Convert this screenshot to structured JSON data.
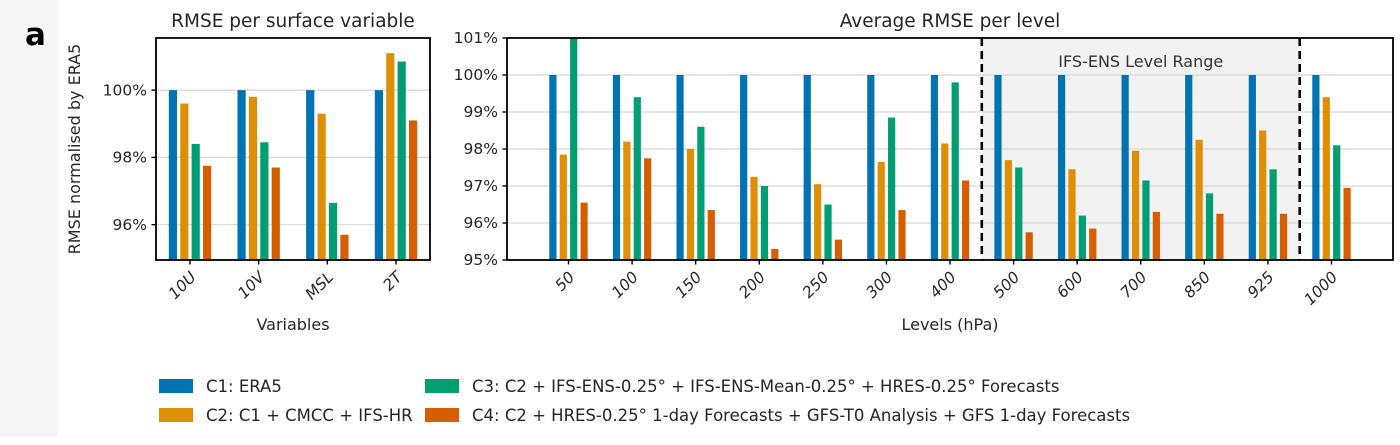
{
  "panel_label": "a",
  "figure": {
    "background": "#ffffff",
    "margin_strip_color": "#f6f6f6",
    "band_fill": "#f2f2f2",
    "gridline_color": "#d8d8d8",
    "spine_color": "#000000",
    "text_color": "#262626"
  },
  "legend": {
    "items": [
      {
        "id": "C1",
        "label": "C1: ERA5",
        "color": "#0173B2"
      },
      {
        "id": "C2",
        "label": "C2: C1 + CMCC + IFS-HR",
        "color": "#DE8F05"
      },
      {
        "id": "C3",
        "label": "C3: C2 + IFS-ENS-0.25° + IFS-ENS-Mean-0.25° + HRES-0.25° Forecasts",
        "color": "#029E73"
      },
      {
        "id": "C4",
        "label": "C4: C2 + HRES-0.25° 1-day Forecasts + GFS-T0 Analysis + GFS 1-day Forecasts",
        "color": "#D55E00"
      }
    ]
  },
  "chart_data": [
    {
      "type": "bar",
      "title": "RMSE per surface variable",
      "xlabel": "Variables",
      "ylabel": "RMSE normalised by ERA5",
      "categories": [
        "10U",
        "10V",
        "MSL",
        "2T"
      ],
      "ylim": [
        94.95,
        101.55
      ],
      "grid": true,
      "yticks": [
        {
          "value": 96,
          "label": "96%"
        },
        {
          "value": 98,
          "label": "98%"
        },
        {
          "value": 100,
          "label": "100%"
        }
      ],
      "series": [
        {
          "name": "C1",
          "color": "#0173B2",
          "values": [
            100.0,
            100.0,
            100.0,
            100.0
          ]
        },
        {
          "name": "C2",
          "color": "#DE8F05",
          "values": [
            99.6,
            99.8,
            99.3,
            101.1
          ]
        },
        {
          "name": "C3",
          "color": "#029E73",
          "values": [
            98.4,
            98.45,
            96.65,
            100.85
          ]
        },
        {
          "name": "C4",
          "color": "#D55E00",
          "values": [
            97.75,
            97.7,
            95.7,
            99.1
          ]
        }
      ]
    },
    {
      "type": "bar",
      "title": "Average RMSE per level",
      "xlabel": "Levels (hPa)",
      "ylabel": "",
      "categories": [
        "50",
        "100",
        "150",
        "200",
        "250",
        "300",
        "400",
        "500",
        "600",
        "700",
        "850",
        "925",
        "1000"
      ],
      "ylim": [
        95,
        101
      ],
      "grid": true,
      "yticks": [
        {
          "value": 95,
          "label": "95%"
        },
        {
          "value": 96,
          "label": "96%"
        },
        {
          "value": 97,
          "label": "97%"
        },
        {
          "value": 98,
          "label": "98%"
        },
        {
          "value": 99,
          "label": "99%"
        },
        {
          "value": 100,
          "label": "100%"
        },
        {
          "value": 101,
          "label": "101%"
        }
      ],
      "series": [
        {
          "name": "C1",
          "color": "#0173B2",
          "values": [
            100.0,
            100.0,
            100.0,
            100.0,
            100.0,
            100.0,
            100.0,
            100.0,
            100.0,
            100.0,
            100.0,
            100.0,
            100.0
          ]
        },
        {
          "name": "C2",
          "color": "#DE8F05",
          "values": [
            97.85,
            98.2,
            98.0,
            97.25,
            97.05,
            97.65,
            98.15,
            97.7,
            97.45,
            97.95,
            98.25,
            98.5,
            99.4
          ]
        },
        {
          "name": "C3",
          "color": "#029E73",
          "values": [
            101.6,
            99.4,
            98.6,
            97.0,
            96.5,
            98.85,
            99.8,
            97.5,
            96.2,
            97.15,
            96.8,
            97.45,
            98.1
          ]
        },
        {
          "name": "C4",
          "color": "#D55E00",
          "values": [
            96.55,
            97.75,
            96.35,
            95.3,
            95.55,
            96.35,
            97.15,
            95.75,
            95.85,
            96.3,
            96.25,
            96.25,
            96.95
          ]
        }
      ],
      "annotation_band": {
        "label": "IFS-ENS Level Range",
        "from_category": "500",
        "to_category": "925"
      },
      "note": "C3 bar at level 50 exceeds the axis top and is clipped at 101%"
    }
  ]
}
